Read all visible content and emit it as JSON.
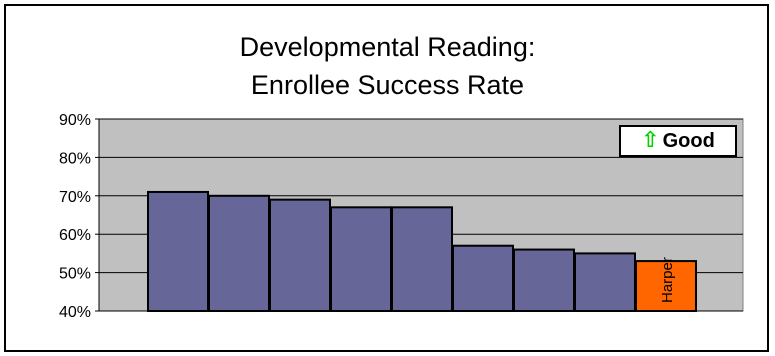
{
  "chart_data": {
    "type": "bar",
    "title_line1": "Developmental Reading:",
    "title_line2": "Enrollee Success Rate",
    "xlabel": "",
    "ylabel": "",
    "ylim": [
      0.4,
      0.9
    ],
    "y_ticks": [
      0.4,
      0.5,
      0.6,
      0.7,
      0.8,
      0.9
    ],
    "y_tick_labels": [
      "40%",
      "50%",
      "60%",
      "70%",
      "80%",
      "90%"
    ],
    "grid": true,
    "categories": [
      "",
      "",
      "",
      "",
      "",
      "",
      "",
      "",
      "Harper"
    ],
    "values": [
      0.71,
      0.7,
      0.69,
      0.67,
      0.67,
      0.57,
      0.56,
      0.55,
      0.53
    ],
    "highlight_index": 8,
    "bar_color": "#666699",
    "highlight_color": "#ff6600",
    "plot_background": "#c0c0c0",
    "annotation": {
      "arrow": "⇧",
      "arrow_color": "#00cc00",
      "text": "Good",
      "position": "top-right"
    }
  }
}
